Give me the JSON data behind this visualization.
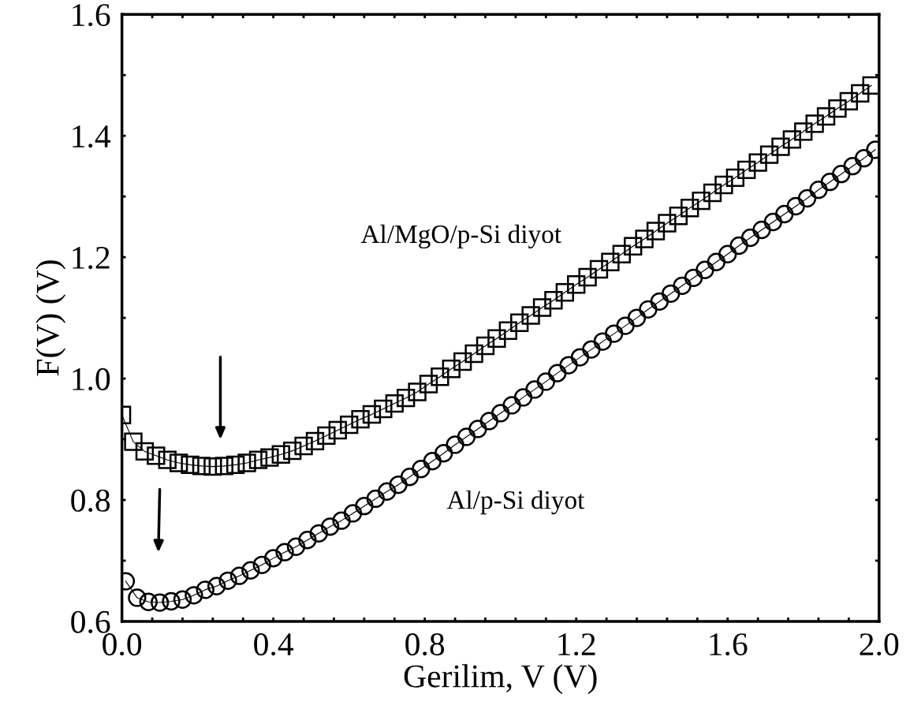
{
  "chart_data": {
    "type": "line",
    "xlabel": "Gerilim, V (V)",
    "ylabel": "F(V) (V)",
    "xlim": [
      0.0,
      2.0
    ],
    "ylim": [
      0.6,
      1.6
    ],
    "xticks": [
      {
        "value": 0.0,
        "label": "0.0"
      },
      {
        "value": 0.08,
        "label": null
      },
      {
        "value": 0.16,
        "label": null
      },
      {
        "value": 0.24,
        "label": null
      },
      {
        "value": 0.32,
        "label": null
      },
      0.4,
      {
        "value": 0.48,
        "label": null
      },
      {
        "value": 0.56,
        "label": null
      },
      {
        "value": 0.64,
        "label": null
      },
      {
        "value": 0.72,
        "label": null
      },
      0.8,
      {
        "value": 0.88,
        "label": null
      },
      {
        "value": 0.96,
        "label": null
      },
      {
        "value": 1.04,
        "label": null
      },
      {
        "value": 1.12,
        "label": null
      },
      1.2,
      {
        "value": 1.28,
        "label": null
      },
      {
        "value": 1.36,
        "label": null
      },
      {
        "value": 1.44,
        "label": null
      },
      {
        "value": 1.52,
        "label": null
      },
      1.6,
      {
        "value": 1.68,
        "label": null
      },
      {
        "value": 1.76,
        "label": null
      },
      {
        "value": 1.84,
        "label": null
      },
      {
        "value": 1.92,
        "label": null
      },
      {
        "value": 2.0,
        "label": "2.0"
      }
    ],
    "yticks": [
      0.6,
      {
        "value": 0.7,
        "label": null
      },
      0.8,
      {
        "value": 0.9,
        "label": null
      },
      {
        "value": 1.0,
        "label": "1.0"
      },
      {
        "value": 1.1,
        "label": null
      },
      1.2,
      {
        "value": 1.3,
        "label": null
      },
      1.4,
      {
        "value": 1.5,
        "label": null
      },
      1.6
    ],
    "grid": false,
    "legend": false,
    "line_style": "solid",
    "series": [
      {
        "name": "Al/MgO/p-Si diyot",
        "color": "#000000",
        "marker": "square",
        "x": [
          0,
          0.03,
          0.06,
          0.09,
          0.12,
          0.15,
          0.18,
          0.21,
          0.24,
          0.27,
          0.3,
          0.33,
          0.36,
          0.39,
          0.42,
          0.45,
          0.48,
          0.51,
          0.54,
          0.57,
          0.6,
          0.63,
          0.66,
          0.69,
          0.72,
          0.75,
          0.78,
          0.81,
          0.84,
          0.87,
          0.9,
          0.93,
          0.96,
          0.99,
          1.02,
          1.05,
          1.08,
          1.11,
          1.14,
          1.17,
          1.2,
          1.23,
          1.26,
          1.29,
          1.32,
          1.35,
          1.38,
          1.41,
          1.44,
          1.47,
          1.5,
          1.53,
          1.56,
          1.59,
          1.62,
          1.65,
          1.68,
          1.71,
          1.74,
          1.77,
          1.8,
          1.83,
          1.86,
          1.89,
          1.92,
          1.95,
          1.98
        ],
        "values": [
          0.94,
          0.896,
          0.88,
          0.873,
          0.866,
          0.861,
          0.858,
          0.856,
          0.855,
          0.856,
          0.858,
          0.861,
          0.866,
          0.87,
          0.875,
          0.881,
          0.889,
          0.897,
          0.906,
          0.915,
          0.924,
          0.933,
          0.941,
          0.95,
          0.959,
          0.968,
          0.978,
          0.991,
          1.003,
          1.016,
          1.028,
          1.041,
          1.054,
          1.066,
          1.079,
          1.092,
          1.104,
          1.117,
          1.129,
          1.142,
          1.155,
          1.167,
          1.18,
          1.192,
          1.205,
          1.218,
          1.23,
          1.243,
          1.256,
          1.268,
          1.281,
          1.293,
          1.306,
          1.319,
          1.331,
          1.344,
          1.356,
          1.369,
          1.382,
          1.394,
          1.407,
          1.42,
          1.432,
          1.445,
          1.457,
          1.47,
          1.483
        ]
      },
      {
        "name": "Al/p-Si diyot",
        "color": "#000000",
        "marker": "circle",
        "x": [
          0.01,
          0.04,
          0.07,
          0.1,
          0.13,
          0.16,
          0.19,
          0.22,
          0.25,
          0.28,
          0.31,
          0.34,
          0.37,
          0.4,
          0.43,
          0.46,
          0.49,
          0.52,
          0.55,
          0.58,
          0.61,
          0.64,
          0.67,
          0.7,
          0.73,
          0.76,
          0.79,
          0.82,
          0.85,
          0.88,
          0.91,
          0.94,
          0.97,
          1.0,
          1.03,
          1.06,
          1.09,
          1.12,
          1.15,
          1.18,
          1.21,
          1.24,
          1.27,
          1.3,
          1.33,
          1.36,
          1.39,
          1.42,
          1.45,
          1.48,
          1.51,
          1.54,
          1.57,
          1.6,
          1.63,
          1.66,
          1.69,
          1.72,
          1.75,
          1.78,
          1.81,
          1.84,
          1.87,
          1.9,
          1.93,
          1.96,
          1.99
        ],
        "values": [
          0.666,
          0.639,
          0.632,
          0.631,
          0.633,
          0.636,
          0.643,
          0.652,
          0.658,
          0.667,
          0.675,
          0.684,
          0.693,
          0.704,
          0.714,
          0.723,
          0.734,
          0.745,
          0.756,
          0.766,
          0.778,
          0.79,
          0.802,
          0.814,
          0.825,
          0.838,
          0.851,
          0.864,
          0.877,
          0.891,
          0.904,
          0.917,
          0.93,
          0.943,
          0.956,
          0.969,
          0.982,
          0.995,
          1.009,
          1.022,
          1.035,
          1.048,
          1.061,
          1.074,
          1.087,
          1.1,
          1.114,
          1.127,
          1.14,
          1.153,
          1.166,
          1.179,
          1.192,
          1.205,
          1.219,
          1.232,
          1.245,
          1.258,
          1.271,
          1.284,
          1.297,
          1.311,
          1.324,
          1.337,
          1.35,
          1.363,
          1.377
        ]
      }
    ]
  }
}
